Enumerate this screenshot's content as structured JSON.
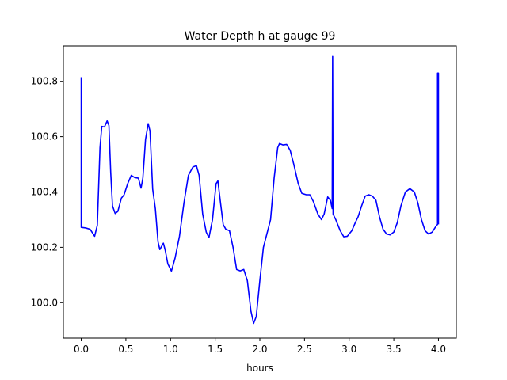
{
  "chart_data": {
    "type": "line",
    "title": "Water Depth h at gauge 99",
    "xlabel": "hours",
    "ylabel": "",
    "xlim": [
      -0.2,
      4.2
    ],
    "ylim": [
      99.872,
      100.928
    ],
    "xticks": [
      0.0,
      0.5,
      1.0,
      1.5,
      2.0,
      2.5,
      3.0,
      3.5,
      4.0
    ],
    "xtick_labels": [
      "0.0",
      "0.5",
      "1.0",
      "1.5",
      "2.0",
      "2.5",
      "3.0",
      "3.5",
      "4.0"
    ],
    "yticks": [
      100.0,
      100.2,
      100.4,
      100.6,
      100.8
    ],
    "ytick_labels": [
      "100.0",
      "100.2",
      "100.4",
      "100.6",
      "100.8"
    ],
    "grid": false,
    "legend": "none",
    "series": [
      {
        "color": "#0000ff",
        "points": [
          [
            0.0,
            100.815
          ],
          [
            0.0,
            100.272
          ],
          [
            0.05,
            100.27
          ],
          [
            0.1,
            100.265
          ],
          [
            0.15,
            100.24
          ],
          [
            0.18,
            100.28
          ],
          [
            0.21,
            100.56
          ],
          [
            0.23,
            100.637
          ],
          [
            0.26,
            100.635
          ],
          [
            0.29,
            100.657
          ],
          [
            0.31,
            100.64
          ],
          [
            0.33,
            100.47
          ],
          [
            0.35,
            100.35
          ],
          [
            0.38,
            100.322
          ],
          [
            0.41,
            100.33
          ],
          [
            0.45,
            100.378
          ],
          [
            0.48,
            100.39
          ],
          [
            0.52,
            100.43
          ],
          [
            0.56,
            100.46
          ],
          [
            0.6,
            100.452
          ],
          [
            0.64,
            100.45
          ],
          [
            0.67,
            100.414
          ],
          [
            0.69,
            100.45
          ],
          [
            0.72,
            100.59
          ],
          [
            0.75,
            100.647
          ],
          [
            0.77,
            100.62
          ],
          [
            0.8,
            100.41
          ],
          [
            0.83,
            100.34
          ],
          [
            0.86,
            100.22
          ],
          [
            0.88,
            100.192
          ],
          [
            0.92,
            100.215
          ],
          [
            0.94,
            100.19
          ],
          [
            0.97,
            100.14
          ],
          [
            1.01,
            100.114
          ],
          [
            1.05,
            100.16
          ],
          [
            1.1,
            100.24
          ],
          [
            1.15,
            100.36
          ],
          [
            1.2,
            100.46
          ],
          [
            1.25,
            100.49
          ],
          [
            1.29,
            100.495
          ],
          [
            1.32,
            100.46
          ],
          [
            1.36,
            100.32
          ],
          [
            1.4,
            100.255
          ],
          [
            1.43,
            100.235
          ],
          [
            1.47,
            100.3
          ],
          [
            1.51,
            100.43
          ],
          [
            1.53,
            100.44
          ],
          [
            1.56,
            100.36
          ],
          [
            1.59,
            100.282
          ],
          [
            1.62,
            100.265
          ],
          [
            1.66,
            100.26
          ],
          [
            1.7,
            100.2
          ],
          [
            1.74,
            100.12
          ],
          [
            1.78,
            100.115
          ],
          [
            1.82,
            100.12
          ],
          [
            1.86,
            100.08
          ],
          [
            1.9,
            99.97
          ],
          [
            1.93,
            99.925
          ],
          [
            1.96,
            99.95
          ],
          [
            2.0,
            100.08
          ],
          [
            2.04,
            100.2
          ],
          [
            2.08,
            100.25
          ],
          [
            2.12,
            100.3
          ],
          [
            2.16,
            100.45
          ],
          [
            2.2,
            100.56
          ],
          [
            2.22,
            100.575
          ],
          [
            2.26,
            100.57
          ],
          [
            2.3,
            100.572
          ],
          [
            2.34,
            100.55
          ],
          [
            2.38,
            100.5
          ],
          [
            2.43,
            100.43
          ],
          [
            2.47,
            100.395
          ],
          [
            2.52,
            100.39
          ],
          [
            2.56,
            100.39
          ],
          [
            2.6,
            100.365
          ],
          [
            2.65,
            100.32
          ],
          [
            2.69,
            100.3
          ],
          [
            2.72,
            100.32
          ],
          [
            2.76,
            100.382
          ],
          [
            2.79,
            100.37
          ],
          [
            2.81,
            100.34
          ],
          [
            2.815,
            100.89
          ],
          [
            2.82,
            100.32
          ],
          [
            2.85,
            100.3
          ],
          [
            2.9,
            100.26
          ],
          [
            2.94,
            100.238
          ],
          [
            2.98,
            100.24
          ],
          [
            3.03,
            100.26
          ],
          [
            3.07,
            100.29
          ],
          [
            3.1,
            100.31
          ],
          [
            3.14,
            100.35
          ],
          [
            3.18,
            100.385
          ],
          [
            3.22,
            100.39
          ],
          [
            3.26,
            100.385
          ],
          [
            3.3,
            100.37
          ],
          [
            3.34,
            100.31
          ],
          [
            3.38,
            100.265
          ],
          [
            3.42,
            100.248
          ],
          [
            3.46,
            100.245
          ],
          [
            3.5,
            100.255
          ],
          [
            3.54,
            100.29
          ],
          [
            3.58,
            100.35
          ],
          [
            3.63,
            100.4
          ],
          [
            3.68,
            100.412
          ],
          [
            3.73,
            100.4
          ],
          [
            3.77,
            100.36
          ],
          [
            3.81,
            100.3
          ],
          [
            3.85,
            100.26
          ],
          [
            3.89,
            100.248
          ],
          [
            3.93,
            100.255
          ],
          [
            3.97,
            100.275
          ],
          [
            3.99,
            100.283
          ],
          [
            3.99,
            100.83
          ],
          [
            4.0,
            100.83
          ],
          [
            4.0,
            100.283
          ]
        ]
      }
    ]
  }
}
